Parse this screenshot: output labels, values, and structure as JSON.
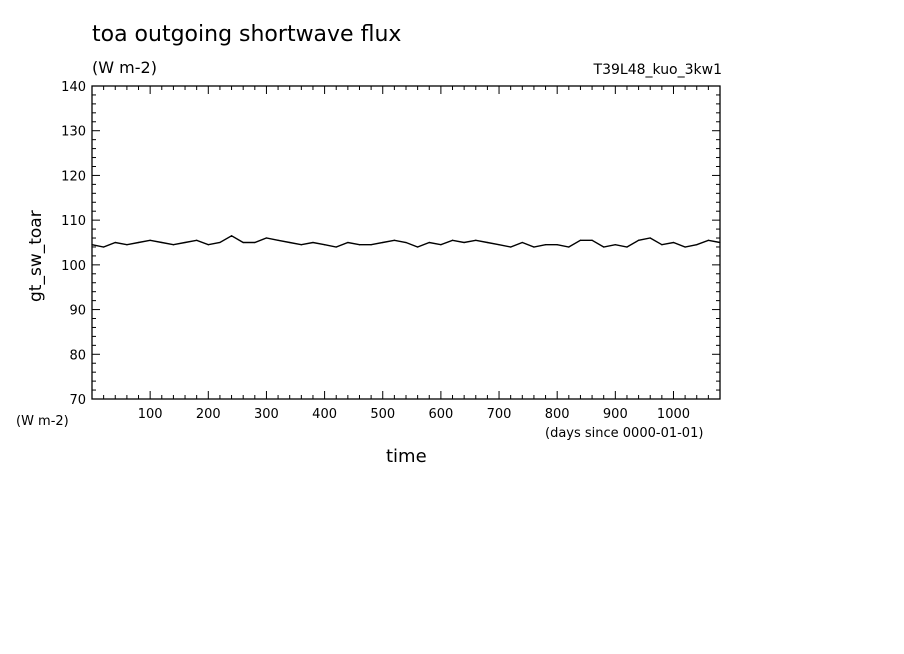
{
  "header": {
    "title": "toa outgoing shortwave flux",
    "units": "(W m-2)",
    "run": "T39L48_kuo_3kw1"
  },
  "chart_data": {
    "type": "line",
    "title": "toa outgoing shortwave flux",
    "ylabel": "gt_sw_toar",
    "yunits": "(W m-2)",
    "xlabel": "time",
    "xunits": "(days since 0000-01-01)",
    "xlim": [
      0,
      1080
    ],
    "ylim": [
      70,
      140
    ],
    "xticks": [
      100,
      200,
      300,
      400,
      500,
      600,
      700,
      800,
      900,
      1000
    ],
    "yticks": [
      70,
      80,
      90,
      100,
      110,
      120,
      130,
      140
    ],
    "grid": false,
    "series": [
      {
        "x": [
          0,
          20,
          40,
          60,
          80,
          100,
          120,
          140,
          160,
          180,
          200,
          220,
          240,
          260,
          280,
          300,
          320,
          340,
          360,
          380,
          400,
          420,
          440,
          460,
          480,
          500,
          520,
          540,
          560,
          580,
          600,
          620,
          640,
          660,
          680,
          700,
          720,
          740,
          760,
          780,
          800,
          820,
          840,
          860,
          880,
          900,
          920,
          940,
          960,
          980,
          1000,
          1020,
          1040,
          1060,
          1080
        ],
        "values": [
          104.5,
          104.0,
          105.0,
          104.5,
          105.0,
          105.5,
          105.0,
          104.5,
          105.0,
          105.5,
          104.5,
          105.0,
          106.5,
          105.0,
          105.0,
          106.0,
          105.5,
          105.0,
          104.5,
          105.0,
          104.5,
          104.0,
          105.0,
          104.5,
          104.5,
          105.0,
          105.5,
          105.0,
          104.0,
          105.0,
          104.5,
          105.5,
          105.0,
          105.5,
          105.0,
          104.5,
          104.0,
          105.0,
          104.0,
          104.5,
          104.5,
          104.0,
          105.5,
          105.5,
          104.0,
          104.5,
          104.0,
          105.5,
          106.0,
          104.5,
          105.0,
          104.0,
          104.5,
          105.5,
          105.0
        ]
      }
    ]
  }
}
